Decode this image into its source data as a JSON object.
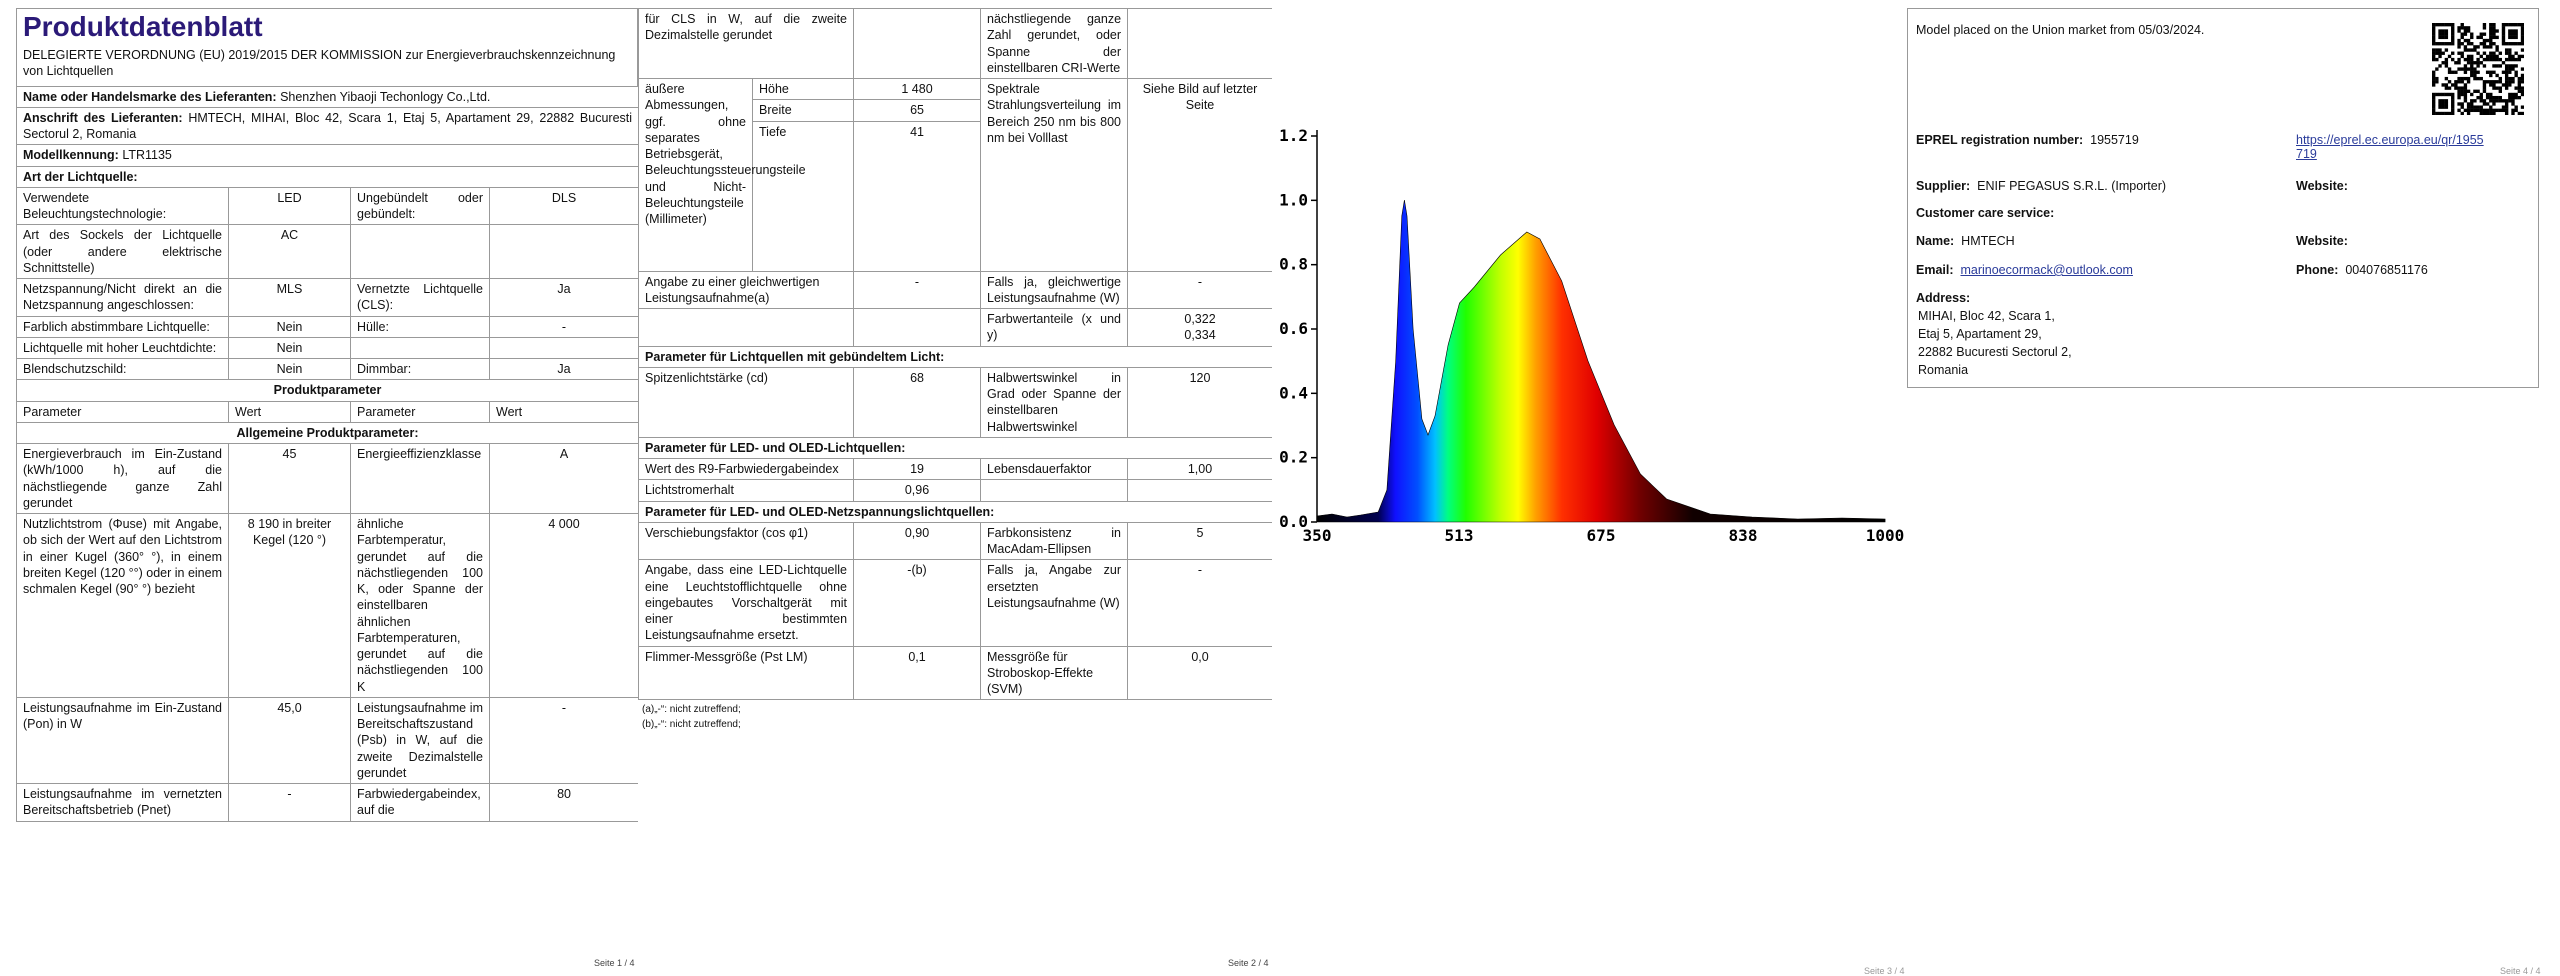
{
  "page1": {
    "title": "Produktdatenblatt",
    "subtitle": "DELEGIERTE VERORDNUNG (EU) 2019/2015 DER KOMMISSION zur Energieverbrauchskennzeichnung von Lichtquellen",
    "supplier_name": {
      "label": "Name oder Handelsmarke des Lieferanten:",
      "value": "Shenzhen Yibaoji Techonlogy Co.,Ltd."
    },
    "supplier_address": {
      "label": "Anschrift des Lieferanten:",
      "value": "HMTECH, MIHAI, Bloc 42, Scara 1, Etaj 5, Apartament 29, 22882 Bucuresti Sectorul 2, Romania"
    },
    "model": {
      "label": "Modellkennung:",
      "value": "LTR1135"
    },
    "light_source_type": "Art der Lichtquelle:",
    "rows": [
      [
        "Verwendete Beleuchtungstechnologie:",
        "LED",
        "Ungebündelt oder gebündelt:",
        "DLS"
      ],
      [
        "Art des Sockels der Lichtquelle (oder andere elektrische Schnittstelle)",
        "AC"
      ],
      [
        "Netzspannung/Nicht direkt an die Netzspannung angeschlossen:",
        "MLS",
        "Vernetzte Lichtquelle (CLS):",
        "Ja"
      ],
      [
        "Farblich abstimmbare Lichtquelle:",
        "Nein",
        "Hülle:",
        "-"
      ],
      [
        "Lichtquelle mit hoher Leuchtdichte:",
        "Nein"
      ],
      [
        "Blendschutzschild:",
        "Nein",
        "Dimmbar:",
        "Ja"
      ]
    ],
    "product_parameters": "Produktparameter",
    "header": [
      "Parameter",
      "Wert",
      "Parameter",
      "Wert"
    ],
    "general_parameters": "Allgemeine Produktparameter:",
    "params": [
      [
        "Energieverbrauch im Ein-Zustand (kWh/1000 h), auf die nächstliegende ganze Zahl gerundet",
        "45",
        "Energieeffizienzklasse",
        "A"
      ],
      [
        "Nutzlichtstrom (Φuse) mit Angabe, ob sich der Wert auf den Lichtstrom in einer Kugel (360° °), in einem breiten Kegel (120 °°) oder in einem schmalen Kegel (90° °) bezieht",
        "8 190 in breiter Kegel (120 °)",
        "ähnliche Farbtemperatur, gerundet auf die nächstliegenden 100 K, oder Spanne der einstellbaren ähnlichen Farbtemperaturen, gerundet auf die nächstliegenden 100 K",
        "4 000"
      ],
      [
        "Leistungsaufnahme im Ein-Zustand (Pon) in W",
        "45,0",
        "Leistungsaufnahme im Bereitschaftszustand (Psb) in W, auf die zweite Dezimalstelle gerundet",
        "-"
      ],
      [
        "Leistungsaufnahme im vernetzten Bereitschaftsbetrieb (Pnet)",
        "-",
        "Farbwiedergabeindex, auf die",
        "80"
      ]
    ],
    "footer": "Seite 1 / 4"
  },
  "page2": {
    "continuation": {
      "left": "für CLS in W, auf die zweite Dezimalstelle gerundet",
      "right": "nächstliegende ganze Zahl gerundet, oder Spanne der einstellbaren CRI-Werte"
    },
    "dimensions": {
      "label": "äußere Abmessungen, ggf. ohne separates Betriebsgerät, Beleuchtungssteuerungsteile und Nicht-Beleuchtungsteile (Millimeter)",
      "items": [
        [
          "Höhe",
          "1 480"
        ],
        [
          "Breite",
          "65"
        ],
        [
          "Tiefe",
          "41"
        ]
      ],
      "spectral_label": "Spektrale Strahlungsverteilung im Bereich 250 nm bis 800 nm bei Volllast",
      "spectral_value": "Siehe Bild auf letzter Seite"
    },
    "equivalent": [
      "Angabe zu einer gleichwertigen Leistungsaufnahme(a)",
      "-",
      "Falls ja, gleichwertige Leistungsaufnahme (W)",
      "-"
    ],
    "chromaticity": {
      "label": "Farbwertanteile (x und y)",
      "x": "0,322",
      "y": "0,334"
    },
    "directional": {
      "title": "Parameter für Lichtquellen mit gebündeltem Licht:",
      "row": [
        "Spitzenlichtstärke (cd)",
        "68",
        "Halbwertswinkel in Grad oder Spanne der einstellbaren Halbwertswinkel",
        "120"
      ]
    },
    "led": {
      "title": "Parameter für LED- und OLED-Lichtquellen:",
      "rows": [
        [
          "Wert des R9-Farbwiedergabeindex",
          "19",
          "Lebensdauerfaktor",
          "1,00"
        ],
        [
          "Lichtstromerhalt",
          "0,96"
        ]
      ]
    },
    "mains": {
      "title": "Parameter für LED- und OLED-Netzspannungslichtquellen:",
      "rows": [
        [
          "Verschiebungsfaktor (cos φ1)",
          "0,90",
          "Farbkonsistenz in MacAdam-Ellipsen",
          "5"
        ],
        [
          "Angabe, dass eine LED-Lichtquelle eine Leuchtstofflichtquelle ohne eingebautes Vorschaltgerät mit einer bestimmten Leistungsaufnahme ersetzt.",
          "-(b)",
          "Falls ja, Angabe zur ersetzten Leistungsaufnahme (W)",
          "-"
        ],
        [
          "Flimmer-Messgröße (Pst LM)",
          "0,1",
          "Messgröße für Stroboskop-Effekte (SVM)",
          "0,0"
        ]
      ]
    },
    "footnotes": [
      "(a)„-“: nicht zutreffend;",
      "(b)„-“: nicht zutreffend;"
    ],
    "footer": "Seite 2 / 4"
  },
  "spectrum": {
    "yticks": [
      "0.0",
      "0.2",
      "0.4",
      "0.6",
      "0.8",
      "1.0",
      "1.2"
    ],
    "xticks": [
      "350",
      "513",
      "675",
      "838",
      "1000"
    ],
    "footer": "Seite 3 / 4"
  },
  "page4": {
    "market": "Model placed on the Union market from 05/03/2024.",
    "eprel": {
      "label": "EPREL registration number:",
      "value": "1955719",
      "link": "https://eprel.ec.europa.eu/qr/1955719"
    },
    "supplier": {
      "label": "Supplier:",
      "value": "ENIF PEGASUS S.R.L. (Importer)",
      "website": "Website:"
    },
    "customer_care": "Customer care service:",
    "name": {
      "label": "Name:",
      "value": "HMTECH",
      "website": "Website:"
    },
    "email": {
      "label": "Email:",
      "value": "marinoecormack@outlook.com",
      "phone_label": "Phone:",
      "phone": "004076851176"
    },
    "address": {
      "label": "Address:",
      "lines": [
        "MIHAI, Bloc 42, Scara 1,",
        "Etaj 5, Apartament 29,",
        "22882 Bucuresti Sectorul 2,",
        "Romania"
      ]
    },
    "footer": "Seite 4 / 4"
  }
}
